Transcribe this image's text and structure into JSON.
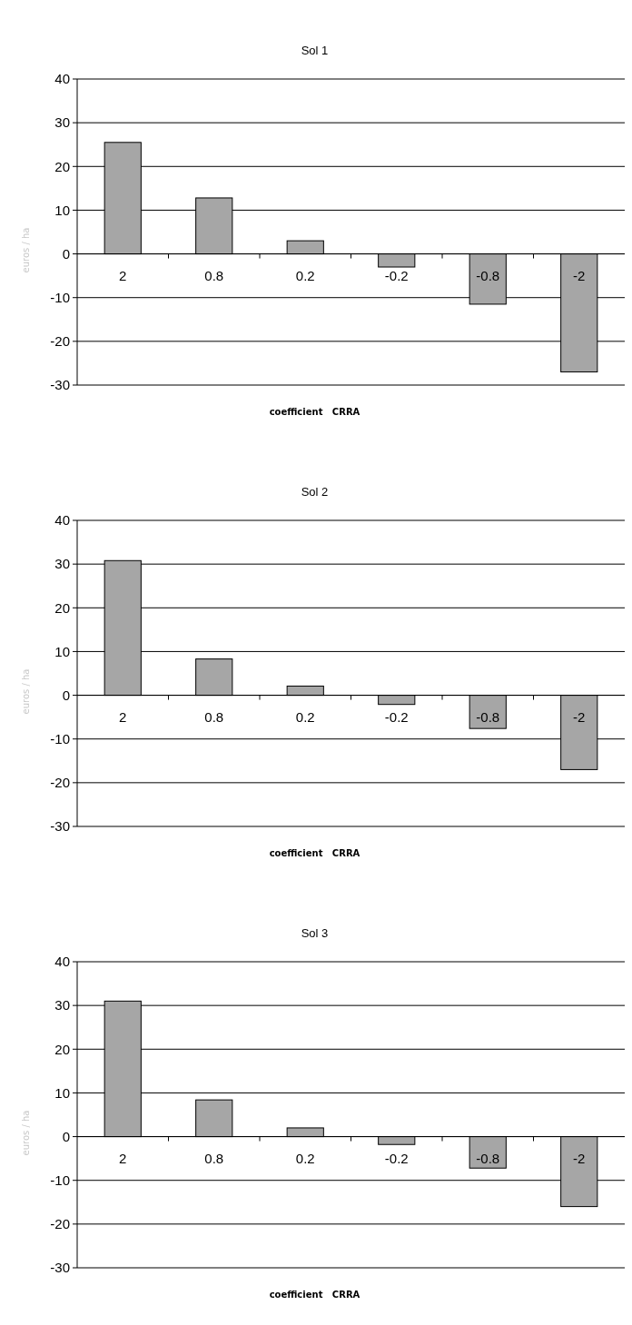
{
  "chart_data": [
    {
      "type": "bar",
      "title": "Sol 1",
      "xlabel": "coefficient   CRRA",
      "ylabel": "euros / ha",
      "categories": [
        "2",
        "0.8",
        "0.2",
        "-0.2",
        "-0.8",
        "-2"
      ],
      "values": [
        25.5,
        12.8,
        3,
        -3,
        -11.5,
        -27
      ],
      "color": "#a6a6a6",
      "ylim": [
        -30,
        40
      ],
      "yticks": [
        -30,
        -20,
        -10,
        0,
        10,
        20,
        30,
        40
      ],
      "grid": "y"
    },
    {
      "type": "bar",
      "title": "Sol 2",
      "xlabel": "coefficient   CRRA",
      "ylabel": "euros / ha",
      "categories": [
        "2",
        "0.8",
        "0.2",
        "-0.2",
        "-0.8",
        "-2"
      ],
      "values": [
        30.8,
        8.3,
        2.1,
        -2.1,
        -7.6,
        -17
      ],
      "color": "#a6a6a6",
      "ylim": [
        -30,
        40
      ],
      "yticks": [
        -30,
        -20,
        -10,
        0,
        10,
        20,
        30,
        40
      ],
      "grid": "y"
    },
    {
      "type": "bar",
      "title": "Sol 3",
      "xlabel": "coefficient   CRRA",
      "ylabel": "euros / ha",
      "categories": [
        "2",
        "0.8",
        "0.2",
        "-0.2",
        "-0.8",
        "-2"
      ],
      "values": [
        31,
        8.4,
        2,
        -1.8,
        -7.2,
        -16
      ],
      "color": "#a6a6a6",
      "ylim": [
        -30,
        40
      ],
      "yticks": [
        -30,
        -20,
        -10,
        0,
        10,
        20,
        30,
        40
      ],
      "grid": "y"
    }
  ]
}
